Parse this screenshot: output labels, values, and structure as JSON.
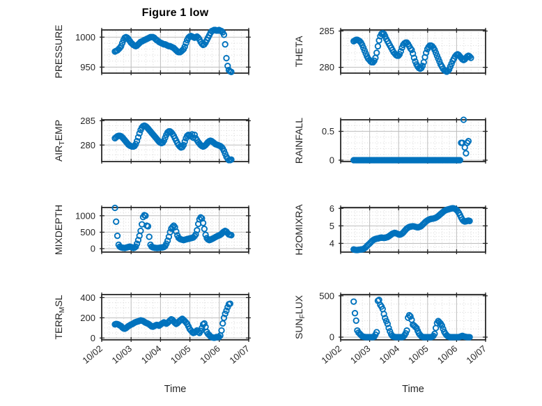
{
  "figure": {
    "title": "Figure 1 low",
    "xlabel": "Time",
    "marker_color": "#0072BD",
    "axis_color": "#262626",
    "text_color": "#262626",
    "grid_color": "#bdbdbd",
    "minor_grid_color": "#d6d6d6",
    "x_tick_labels": [
      "10/02",
      "10/03",
      "10/04",
      "10/05",
      "10/06",
      "10/07"
    ],
    "xlim_days": [
      0,
      5
    ]
  },
  "chart_data": [
    {
      "type": "scatter",
      "id": "pressure",
      "ylabel": "PRESSURE",
      "ylabel_parts": [
        {
          "text": "PRESSURE",
          "sub": false
        }
      ],
      "yticks": [
        950,
        1000
      ],
      "y_minor_step": 10,
      "ylim": [
        940,
        1012
      ],
      "series": {
        "t0_days": 0.45,
        "dt_days": 0.0416667,
        "values": [
          976,
          977,
          978,
          980,
          982,
          985,
          990,
          995,
          999,
          1000,
          999,
          997,
          994,
          991,
          989,
          987,
          986,
          985,
          986,
          988,
          990,
          992,
          993,
          994,
          995,
          996,
          997,
          998,
          999,
          1000,
          1000,
          1000,
          999,
          997,
          995,
          994,
          992,
          991,
          990,
          989,
          988,
          988,
          987,
          986,
          985,
          985,
          984,
          983,
          982,
          980,
          978,
          976,
          975,
          975,
          976,
          978,
          980,
          984,
          990,
          995,
          999,
          1001,
          1002,
          1001,
          1000,
          999,
          1000,
          1001,
          999,
          996,
          992,
          989,
          987,
          988,
          991,
          995,
          999,
          1003,
          1007,
          1010,
          1011,
          1012,
          1012,
          1011,
          1011,
          1012,
          1011,
          1010,
          1008,
          1004,
          988,
          965,
          952,
          945,
          943,
          942
        ]
      }
    },
    {
      "type": "scatter",
      "id": "theta",
      "ylabel": "THETA",
      "ylabel_parts": [
        {
          "text": "THETA",
          "sub": false
        }
      ],
      "yticks": [
        280,
        285
      ],
      "y_minor_step": 1,
      "ylim": [
        279.2,
        285.15
      ],
      "series": {
        "t0_days": 0.45,
        "dt_days": 0.0416667,
        "values": [
          283.6,
          283.7,
          283.8,
          283.8,
          283.7,
          283.6,
          283.4,
          283.1,
          282.7,
          282.3,
          281.9,
          281.5,
          281.2,
          281.0,
          280.8,
          280.7,
          280.7,
          280.9,
          281.3,
          282.0,
          282.9,
          283.7,
          284.3,
          284.6,
          284.7,
          284.6,
          284.3,
          283.9,
          283.6,
          283.3,
          283.0,
          282.7,
          282.4,
          282.1,
          281.9,
          281.7,
          281.6,
          281.6,
          281.8,
          282.2,
          282.7,
          283.1,
          283.3,
          283.4,
          283.4,
          283.2,
          282.9,
          282.6,
          282.4,
          281.9,
          281.3,
          280.8,
          280.4,
          280.1,
          279.9,
          279.8,
          279.9,
          280.2,
          280.7,
          281.4,
          282.0,
          282.5,
          282.8,
          283.0,
          283.0,
          282.9,
          282.7,
          282.4,
          282.0,
          281.6,
          281.2,
          280.8,
          280.4,
          280.1,
          279.8,
          279.6,
          279.5,
          279.4,
          279.5,
          279.7,
          280.1,
          280.5,
          280.9,
          281.2,
          281.5,
          281.7,
          281.8,
          281.7,
          281.5,
          281.3,
          281.1,
          281.0,
          281.1,
          281.3,
          281.5,
          281.6,
          281.5,
          281.3
        ]
      }
    },
    {
      "type": "scatter",
      "id": "air_temp",
      "ylabel": "AIR_TEMP",
      "ylabel_parts": [
        {
          "text": "AIR",
          "sub": false
        },
        {
          "text": "T",
          "sub": true
        },
        {
          "text": "EMP",
          "sub": false
        }
      ],
      "yticks": [
        280,
        285
      ],
      "y_minor_step": 1,
      "ylim": [
        276.6,
        285.2
      ],
      "series": {
        "t0_days": 0.45,
        "dt_days": 0.0416667,
        "values": [
          281.4,
          281.6,
          281.8,
          281.9,
          281.9,
          281.8,
          281.6,
          281.3,
          281.0,
          280.7,
          280.4,
          280.1,
          279.9,
          279.8,
          279.7,
          279.7,
          279.8,
          280.2,
          280.8,
          281.6,
          282.4,
          283.1,
          283.6,
          283.9,
          284.0,
          283.9,
          283.7,
          283.4,
          283.1,
          282.8,
          282.5,
          282.2,
          281.9,
          281.6,
          281.3,
          281.0,
          280.7,
          280.5,
          280.4,
          280.5,
          280.9,
          281.5,
          282.1,
          282.6,
          282.8,
          282.8,
          282.6,
          282.3,
          281.9,
          281.4,
          280.9,
          280.4,
          280.0,
          279.7,
          279.5,
          279.6,
          280.0,
          280.7,
          281.4,
          281.9,
          282.1,
          282.0,
          281.8,
          282.2,
          281.5,
          282.1,
          281.4,
          281.0,
          280.6,
          280.3,
          280.0,
          279.8,
          279.7,
          279.8,
          280.0,
          280.3,
          280.6,
          280.8,
          280.9,
          280.8,
          280.6,
          280.4,
          280.2,
          280.1,
          280.0,
          279.9,
          279.8,
          279.6,
          279.3,
          278.8,
          278.2,
          277.6,
          277.2,
          276.9,
          276.9,
          277.0
        ]
      }
    },
    {
      "type": "scatter",
      "id": "rainfall",
      "ylabel": "RAINFALL",
      "ylabel_parts": [
        {
          "text": "RAINFALL",
          "sub": false
        }
      ],
      "yticks": [
        0,
        0.5
      ],
      "y_minor_step": 0.1,
      "ylim": [
        -0.024,
        0.7
      ],
      "series": {
        "t0_days": 0.45,
        "dt_days": 0.0416667,
        "values": [
          0,
          0,
          0,
          0,
          0,
          0,
          0,
          0,
          0,
          0,
          0,
          0,
          0,
          0,
          0,
          0,
          0,
          0,
          0,
          0,
          0,
          0,
          0,
          0,
          0,
          0,
          0,
          0,
          0,
          0,
          0,
          0,
          0,
          0,
          0,
          0,
          0,
          0,
          0,
          0,
          0,
          0,
          0,
          0,
          0,
          0,
          0,
          0,
          0,
          0,
          0,
          0,
          0,
          0,
          0,
          0,
          0,
          0,
          0,
          0,
          0,
          0,
          0,
          0,
          0,
          0,
          0,
          0,
          0,
          0,
          0,
          0,
          0,
          0,
          0,
          0,
          0,
          0,
          0,
          0,
          0,
          0,
          0,
          0,
          0,
          0,
          0,
          0,
          0,
          0.3,
          0.3,
          0.7,
          0.22,
          0.12,
          0.3,
          0.33
        ]
      }
    },
    {
      "type": "scatter",
      "id": "mixdepth",
      "ylabel": "MIXDEPTH",
      "ylabel_parts": [
        {
          "text": "MIXDEPTH",
          "sub": false
        }
      ],
      "yticks": [
        0,
        500,
        1000
      ],
      "y_minor_step": 100,
      "ylim": [
        -105,
        1250
      ],
      "series": {
        "t0_days": 0.45,
        "dt_days": 0.0416667,
        "values": [
          1240,
          820,
          390,
          120,
          60,
          40,
          30,
          25,
          20,
          30,
          40,
          50,
          60,
          50,
          40,
          20,
          30,
          60,
          150,
          260,
          390,
          540,
          740,
          960,
          1020,
          1000,
          700,
          680,
          360,
          120,
          60,
          40,
          30,
          25,
          20,
          20,
          25,
          30,
          35,
          40,
          50,
          80,
          150,
          240,
          360,
          500,
          610,
          660,
          700,
          650,
          520,
          400,
          330,
          300,
          280,
          270,
          260,
          270,
          280,
          290,
          300,
          310,
          320,
          330,
          340,
          380,
          430,
          560,
          750,
          890,
          950,
          920,
          780,
          600,
          420,
          320,
          280,
          260,
          270,
          290,
          310,
          330,
          350,
          370,
          390,
          400,
          420,
          450,
          490,
          520,
          540,
          520,
          470,
          430,
          420,
          410
        ]
      }
    },
    {
      "type": "scatter",
      "id": "h2omixra",
      "ylabel": "H2OMIXRA",
      "ylabel_parts": [
        {
          "text": "H2OMIXRA",
          "sub": false
        }
      ],
      "yticks": [
        4,
        5,
        6
      ],
      "y_minor_step": 0.2,
      "ylim": [
        3.5,
        6.05
      ],
      "series": {
        "t0_days": 0.45,
        "dt_days": 0.0416667,
        "values": [
          3.65,
          3.63,
          3.62,
          3.62,
          3.63,
          3.64,
          3.65,
          3.66,
          3.68,
          3.72,
          3.78,
          3.85,
          3.92,
          3.98,
          4.05,
          4.12,
          4.18,
          4.22,
          4.25,
          4.27,
          4.28,
          4.3,
          4.32,
          4.33,
          4.32,
          4.31,
          4.32,
          4.34,
          4.36,
          4.4,
          4.45,
          4.5,
          4.55,
          4.58,
          4.6,
          4.58,
          4.55,
          4.52,
          4.5,
          4.52,
          4.56,
          4.62,
          4.7,
          4.78,
          4.85,
          4.9,
          4.94,
          4.96,
          4.97,
          4.98,
          4.97,
          4.95,
          4.93,
          4.92,
          4.93,
          4.96,
          5.0,
          5.06,
          5.13,
          5.2,
          5.26,
          5.31,
          5.35,
          5.38,
          5.4,
          5.41,
          5.42,
          5.44,
          5.47,
          5.51,
          5.56,
          5.62,
          5.68,
          5.74,
          5.8,
          5.85,
          5.89,
          5.92,
          5.94,
          5.96,
          5.98,
          6.0,
          6.01,
          6.0,
          5.97,
          5.92,
          5.85,
          5.75,
          5.62,
          5.48,
          5.36,
          5.28,
          5.25,
          5.26,
          5.28,
          5.3,
          5.28
        ]
      }
    },
    {
      "type": "scatter",
      "id": "terr_msl",
      "ylabel": "TERR_MSL",
      "ylabel_parts": [
        {
          "text": "TERR",
          "sub": false
        },
        {
          "text": "M",
          "sub": true
        },
        {
          "text": "SL",
          "sub": false
        }
      ],
      "yticks": [
        0,
        200,
        400
      ],
      "y_minor_step": 50,
      "ylim": [
        -18,
        430
      ],
      "series": {
        "t0_days": 0.45,
        "dt_days": 0.0416667,
        "values": [
          135,
          140,
          138,
          132,
          125,
          118,
          105,
          95,
          92,
          98,
          108,
          118,
          125,
          132,
          138,
          145,
          152,
          158,
          162,
          165,
          170,
          175,
          172,
          168,
          160,
          152,
          148,
          142,
          135,
          125,
          115,
          112,
          118,
          125,
          130,
          128,
          122,
          130,
          140,
          148,
          155,
          150,
          142,
          150,
          162,
          175,
          185,
          180,
          165,
          150,
          140,
          148,
          160,
          172,
          182,
          190,
          180,
          168,
          155,
          140,
          115,
          90,
          75,
          60,
          50,
          55,
          65,
          75,
          60,
          50,
          70,
          100,
          135,
          145,
          110,
          60,
          40,
          30,
          15,
          8,
          5,
          3,
          5,
          10,
          8,
          10,
          25,
          75,
          145,
          200,
          240,
          270,
          305,
          335,
          340
        ]
      }
    },
    {
      "type": "scatter",
      "id": "sun_flux",
      "ylabel": "SUN_FLUX",
      "ylabel_parts": [
        {
          "text": "SUN",
          "sub": false
        },
        {
          "text": "F",
          "sub": true
        },
        {
          "text": "LUX",
          "sub": false
        }
      ],
      "yticks": [
        0,
        500
      ],
      "y_minor_step": 100,
      "ylim": [
        -33,
        515
      ],
      "series": {
        "t0_days": 0.45,
        "dt_days": 0.0416667,
        "values": [
          430,
          290,
          200,
          80,
          55,
          40,
          25,
          10,
          5,
          2,
          0,
          0,
          0,
          0,
          0,
          0,
          0,
          5,
          30,
          60,
          440,
          450,
          390,
          370,
          340,
          280,
          230,
          195,
          160,
          110,
          70,
          35,
          15,
          5,
          2,
          0,
          0,
          0,
          0,
          0,
          0,
          5,
          20,
          45,
          80,
          235,
          265,
          250,
          210,
          150,
          140,
          125,
          110,
          75,
          45,
          25,
          10,
          4,
          0,
          0,
          0,
          0,
          0,
          0,
          0,
          5,
          15,
          40,
          110,
          170,
          195,
          180,
          165,
          140,
          100,
          65,
          40,
          22,
          10,
          4,
          0,
          0,
          0,
          0,
          0,
          0,
          0,
          0,
          5,
          10,
          15,
          10,
          5,
          2,
          0,
          0,
          0
        ]
      }
    }
  ]
}
